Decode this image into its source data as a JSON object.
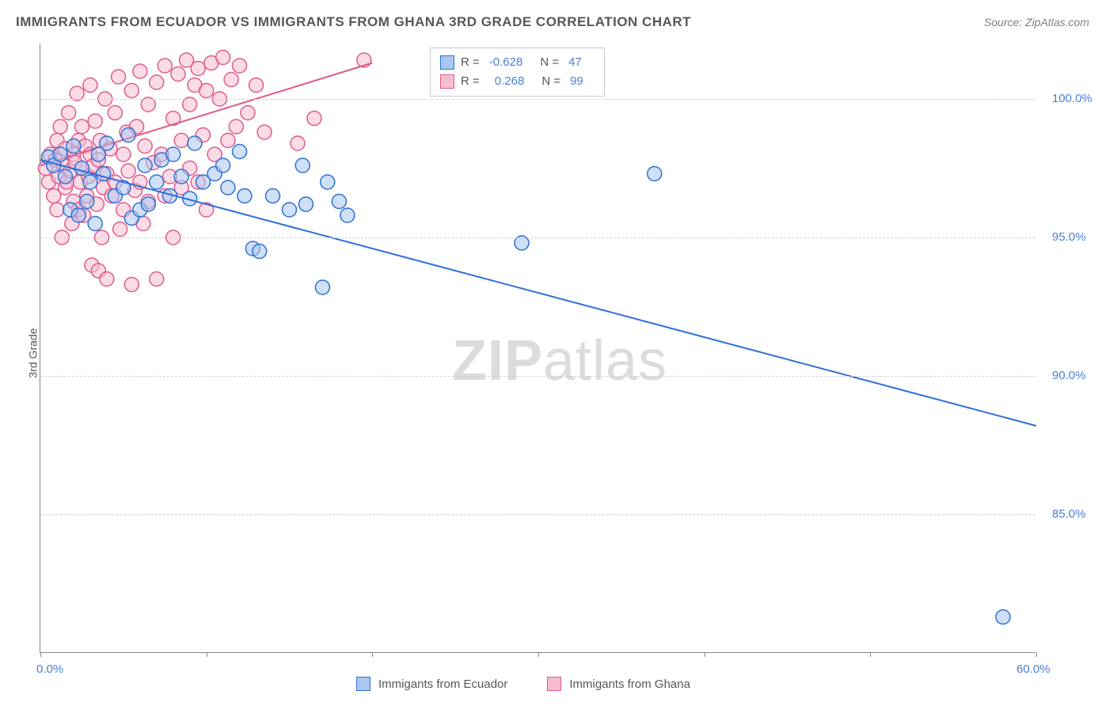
{
  "title": "IMMIGRANTS FROM ECUADOR VS IMMIGRANTS FROM GHANA 3RD GRADE CORRELATION CHART",
  "source_label": "Source: ZipAtlas.com",
  "y_axis_label": "3rd Grade",
  "watermark": {
    "bold": "ZIP",
    "rest": "atlas"
  },
  "chart": {
    "type": "scatter",
    "background_color": "#ffffff",
    "grid_color": "#d0d0d0",
    "axis_color": "#888888",
    "tick_label_color": "#4a7fd8",
    "tick_label_fontsize": 15,
    "title_color": "#575757",
    "title_fontsize": 17,
    "xlim": [
      0,
      60
    ],
    "ylim": [
      80,
      102
    ],
    "x_ticks": [
      0,
      10,
      20,
      30,
      40,
      50,
      60
    ],
    "x_tick_labels": {
      "0": "0.0%",
      "60": "60.0%"
    },
    "y_ticks": [
      85,
      90,
      95,
      100
    ],
    "y_tick_labels": {
      "85": "85.0%",
      "90": "90.0%",
      "95": "95.0%",
      "100": "100.0%"
    },
    "marker_radius": 9,
    "marker_stroke_width": 1.5,
    "marker_fill_opacity": 0.25,
    "line_width": 2,
    "series": [
      {
        "name": "Immigants from Ecuador",
        "label": "Immigants from Ecuador",
        "color_stroke": "#2e6fd6",
        "color_fill": "#a9c7f0",
        "R": "-0.628",
        "N": "47",
        "regression": {
          "x1": 0,
          "y1": 97.8,
          "x2": 60,
          "y2": 88.2
        },
        "points": [
          [
            0.5,
            97.9
          ],
          [
            0.8,
            97.6
          ],
          [
            1.2,
            98.0
          ],
          [
            1.5,
            97.2
          ],
          [
            1.8,
            96.0
          ],
          [
            2.0,
            98.3
          ],
          [
            2.3,
            95.8
          ],
          [
            2.5,
            97.5
          ],
          [
            2.8,
            96.3
          ],
          [
            3.0,
            97.0
          ],
          [
            3.3,
            95.5
          ],
          [
            3.5,
            98.0
          ],
          [
            3.8,
            97.3
          ],
          [
            4.0,
            98.4
          ],
          [
            4.5,
            96.5
          ],
          [
            5.0,
            96.8
          ],
          [
            5.3,
            98.7
          ],
          [
            5.5,
            95.7
          ],
          [
            6.0,
            96.0
          ],
          [
            6.3,
            97.6
          ],
          [
            6.5,
            96.2
          ],
          [
            7.0,
            97.0
          ],
          [
            7.3,
            97.8
          ],
          [
            7.8,
            96.5
          ],
          [
            8.0,
            98.0
          ],
          [
            8.5,
            97.2
          ],
          [
            9.0,
            96.4
          ],
          [
            9.3,
            98.4
          ],
          [
            9.8,
            97.0
          ],
          [
            10.5,
            97.3
          ],
          [
            11.0,
            97.6
          ],
          [
            11.3,
            96.8
          ],
          [
            12.0,
            98.1
          ],
          [
            12.3,
            96.5
          ],
          [
            12.8,
            94.6
          ],
          [
            13.2,
            94.5
          ],
          [
            14.0,
            96.5
          ],
          [
            15.0,
            96.0
          ],
          [
            15.8,
            97.6
          ],
          [
            16.0,
            96.2
          ],
          [
            17.0,
            93.2
          ],
          [
            17.3,
            97.0
          ],
          [
            18.0,
            96.3
          ],
          [
            18.5,
            95.8
          ],
          [
            29.0,
            94.8
          ],
          [
            37.0,
            97.3
          ],
          [
            58.0,
            81.3
          ]
        ]
      },
      {
        "name": "Immigants from Ghana",
        "label": "Immigants from Ghana",
        "color_stroke": "#e05a8a",
        "color_fill": "#f6bdd1",
        "R": "0.268",
        "N": "99",
        "regression": {
          "x1": 0,
          "y1": 97.6,
          "x2": 20,
          "y2": 101.3
        },
        "points": [
          [
            0.3,
            97.5
          ],
          [
            0.5,
            97.0
          ],
          [
            0.6,
            98.0
          ],
          [
            0.8,
            96.5
          ],
          [
            0.9,
            97.8
          ],
          [
            1.0,
            98.5
          ],
          [
            1.0,
            96.0
          ],
          [
            1.1,
            97.2
          ],
          [
            1.2,
            99.0
          ],
          [
            1.3,
            95.0
          ],
          [
            1.4,
            97.6
          ],
          [
            1.5,
            98.2
          ],
          [
            1.5,
            96.8
          ],
          [
            1.6,
            97.0
          ],
          [
            1.7,
            99.5
          ],
          [
            1.8,
            97.4
          ],
          [
            1.9,
            95.5
          ],
          [
            2.0,
            98.0
          ],
          [
            2.0,
            96.3
          ],
          [
            2.1,
            97.7
          ],
          [
            2.2,
            100.2
          ],
          [
            2.3,
            98.5
          ],
          [
            2.3,
            96.0
          ],
          [
            2.4,
            97.0
          ],
          [
            2.5,
            99.0
          ],
          [
            2.5,
            97.5
          ],
          [
            2.6,
            95.8
          ],
          [
            2.7,
            98.3
          ],
          [
            2.8,
            96.5
          ],
          [
            2.9,
            97.2
          ],
          [
            3.0,
            100.5
          ],
          [
            3.0,
            98.0
          ],
          [
            3.1,
            94.0
          ],
          [
            3.2,
            97.6
          ],
          [
            3.3,
            99.2
          ],
          [
            3.4,
            96.2
          ],
          [
            3.5,
            97.8
          ],
          [
            3.5,
            93.8
          ],
          [
            3.6,
            98.5
          ],
          [
            3.7,
            95.0
          ],
          [
            3.8,
            96.8
          ],
          [
            3.9,
            100.0
          ],
          [
            4.0,
            97.3
          ],
          [
            4.0,
            93.5
          ],
          [
            4.2,
            98.2
          ],
          [
            4.3,
            96.5
          ],
          [
            4.5,
            99.5
          ],
          [
            4.5,
            97.0
          ],
          [
            4.7,
            100.8
          ],
          [
            4.8,
            95.3
          ],
          [
            5.0,
            98.0
          ],
          [
            5.0,
            96.0
          ],
          [
            5.2,
            98.8
          ],
          [
            5.3,
            97.4
          ],
          [
            5.5,
            100.3
          ],
          [
            5.5,
            93.3
          ],
          [
            5.7,
            96.7
          ],
          [
            5.8,
            99.0
          ],
          [
            6.0,
            97.0
          ],
          [
            6.0,
            101.0
          ],
          [
            6.2,
            95.5
          ],
          [
            6.3,
            98.3
          ],
          [
            6.5,
            99.8
          ],
          [
            6.5,
            96.3
          ],
          [
            6.8,
            97.7
          ],
          [
            7.0,
            100.6
          ],
          [
            7.0,
            93.5
          ],
          [
            7.3,
            98.0
          ],
          [
            7.5,
            96.5
          ],
          [
            7.5,
            101.2
          ],
          [
            7.8,
            97.2
          ],
          [
            8.0,
            99.3
          ],
          [
            8.0,
            95.0
          ],
          [
            8.3,
            100.9
          ],
          [
            8.5,
            96.8
          ],
          [
            8.5,
            98.5
          ],
          [
            8.8,
            101.4
          ],
          [
            9.0,
            97.5
          ],
          [
            9.0,
            99.8
          ],
          [
            9.3,
            100.5
          ],
          [
            9.5,
            97.0
          ],
          [
            9.5,
            101.1
          ],
          [
            9.8,
            98.7
          ],
          [
            10.0,
            100.3
          ],
          [
            10.0,
            96.0
          ],
          [
            10.3,
            101.3
          ],
          [
            10.5,
            98.0
          ],
          [
            10.8,
            100.0
          ],
          [
            11.0,
            101.5
          ],
          [
            11.3,
            98.5
          ],
          [
            11.5,
            100.7
          ],
          [
            11.8,
            99.0
          ],
          [
            12.0,
            101.2
          ],
          [
            12.5,
            99.5
          ],
          [
            13.0,
            100.5
          ],
          [
            13.5,
            98.8
          ],
          [
            15.5,
            98.4
          ],
          [
            16.5,
            99.3
          ],
          [
            19.5,
            101.4
          ]
        ]
      }
    ]
  },
  "stats_legend": {
    "r_label": "R =",
    "n_label": "N ="
  },
  "bottom_legend": {
    "series1": "Immigants from Ecuador",
    "series2": "Immigants from Ghana"
  }
}
